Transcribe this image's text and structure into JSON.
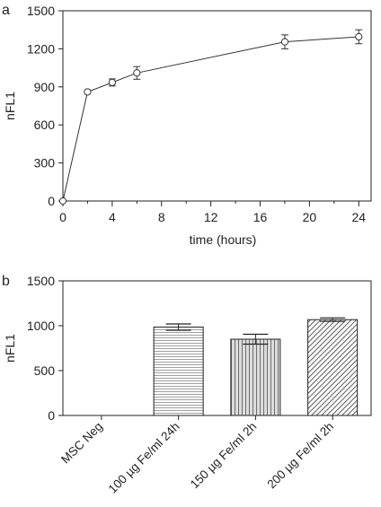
{
  "chart_data": [
    {
      "type": "line",
      "panel_label": "a",
      "xlabel": "time (hours)",
      "ylabel": "nFL1",
      "xlim": [
        0,
        25
      ],
      "ylim": [
        0,
        1500
      ],
      "x_ticks": [
        0,
        4,
        8,
        12,
        16,
        20,
        24
      ],
      "x_minor_ticks": [
        2,
        6,
        10,
        14,
        18,
        22
      ],
      "y_ticks": [
        0,
        300,
        600,
        900,
        1200,
        1500
      ],
      "grid": false,
      "marker": "open-circle",
      "series": [
        {
          "x": [
            0,
            2,
            4,
            6,
            18,
            24
          ],
          "y": [
            0,
            860,
            935,
            1010,
            1255,
            1295
          ],
          "error": [
            0,
            0,
            28,
            50,
            55,
            55
          ]
        }
      ]
    },
    {
      "type": "bar",
      "panel_label": "b",
      "xlabel": "",
      "ylabel": "nFL1",
      "ylim": [
        0,
        1500
      ],
      "y_ticks": [
        0,
        500,
        1000,
        1500
      ],
      "grid": false,
      "categories": [
        "MSC Neg",
        "100 µg Fe/ml 24h",
        "150 µg Fe/ml 2h",
        "200 µg Fe/ml 2h"
      ],
      "values": [
        0,
        985,
        850,
        1068
      ],
      "error": [
        0,
        35,
        55,
        20
      ],
      "patterns": [
        "none",
        "horizontal-lines",
        "vertical-lines",
        "diagonal-hatch"
      ],
      "colors": {
        "bar_stroke": "#222222",
        "pattern_stroke": "#555555"
      }
    }
  ]
}
